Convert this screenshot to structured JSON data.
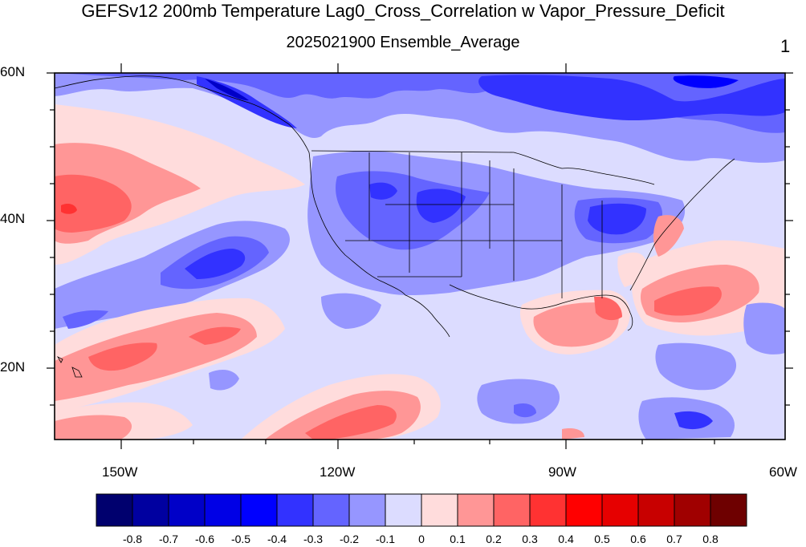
{
  "title": "GEFSv12 200mb Temperature Lag0_Cross_Correlation w Vapor_Pressure_Deficit",
  "subtitle": "2025021900 Ensemble_Average",
  "corner_label": "1",
  "lat_labels": [
    "60N",
    "40N",
    "20N"
  ],
  "lon_labels": [
    "150W",
    "120W",
    "90W",
    "60W"
  ],
  "colorbar": {
    "colors": [
      "#00006e",
      "#0000a0",
      "#0000c8",
      "#0000e6",
      "#0000ff",
      "#3232ff",
      "#6464ff",
      "#9696ff",
      "#dcdcff",
      "#ffdcdc",
      "#ff9696",
      "#ff6464",
      "#ff3232",
      "#ff0000",
      "#e60000",
      "#c80000",
      "#a00000",
      "#6e0000"
    ],
    "tick_labels": [
      "-0.8",
      "-0.7",
      "-0.6",
      "-0.5",
      "-0.4",
      "-0.3",
      "-0.2",
      "-0.1",
      "0",
      "0.1",
      "0.2",
      "0.3",
      "0.4",
      "0.5",
      "0.6",
      "0.7",
      "0.8"
    ]
  }
}
